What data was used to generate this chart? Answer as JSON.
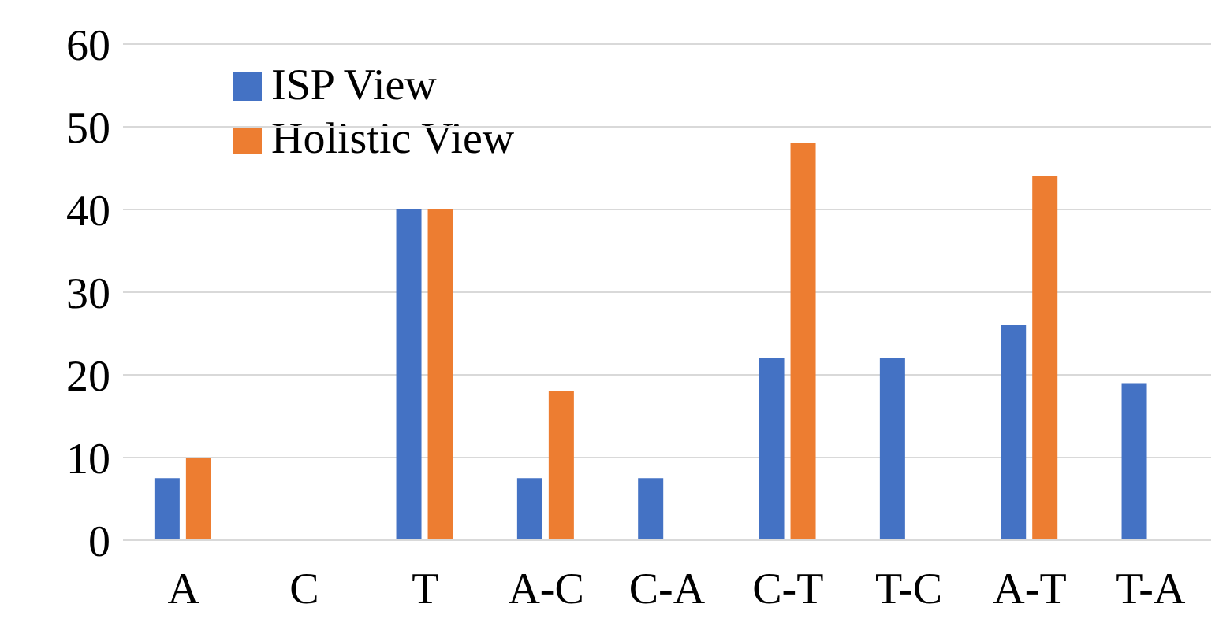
{
  "chart_data": {
    "type": "bar",
    "categories": [
      "A",
      "C",
      "T",
      "A-C",
      "C-A",
      "C-T",
      "T-C",
      "A-T",
      "T-A"
    ],
    "series": [
      {
        "name": "ISP View",
        "color": "#4472c4",
        "values": [
          7.5,
          0,
          40,
          7.5,
          7.5,
          22,
          22,
          26,
          19
        ]
      },
      {
        "name": "Holistic View",
        "color": "#ed7d31",
        "values": [
          10,
          0,
          40,
          18,
          0,
          48,
          0,
          44,
          0
        ]
      }
    ],
    "ylim": [
      0,
      60
    ],
    "yticks": [
      0,
      10,
      20,
      30,
      40,
      50,
      60
    ],
    "grid": "y",
    "legend": "top left"
  }
}
